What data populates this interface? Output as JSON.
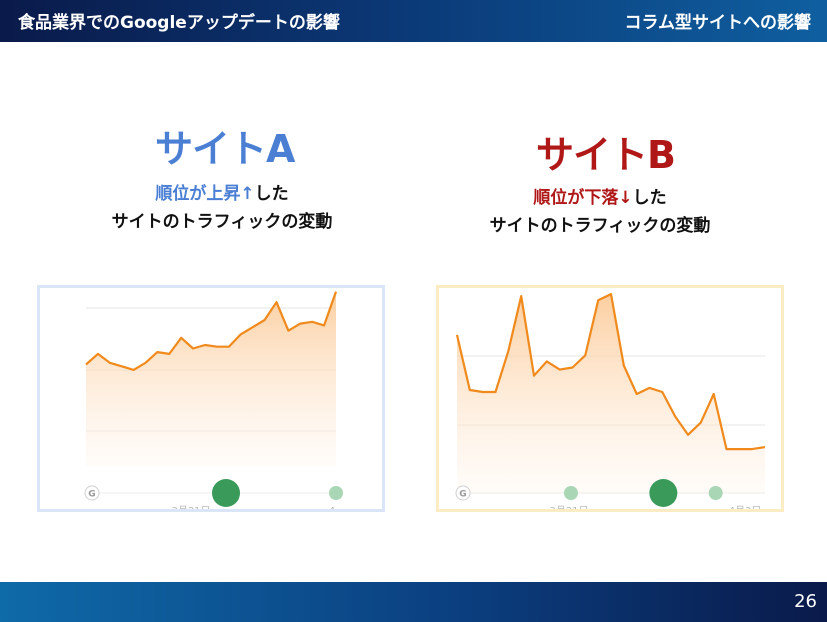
{
  "header": {
    "left_title": "食品業界でのGoogleアップデートの影響",
    "right_title": "コラム型サイトへの影響"
  },
  "footer": {
    "page_number": "26"
  },
  "site_a": {
    "title": "サイトA",
    "caption_highlight": "順位が上昇↑",
    "caption_suffix": "した",
    "caption_line2": "サイトのトラフィックの変動",
    "accent_color": "#4a7fd4"
  },
  "site_b": {
    "title": "サイトB",
    "caption_highlight": "順位が下落↓",
    "caption_suffix": "した",
    "caption_line2": "サイトのトラフィックの変動",
    "accent_color": "#b01818"
  },
  "chart_data": [
    {
      "type": "area",
      "name": "site-a-traffic",
      "x_tick_labels": [
        "3月21日",
        "4"
      ],
      "y": [
        57,
        63,
        58,
        56,
        54,
        58,
        64,
        63,
        72,
        66,
        68,
        67,
        67,
        74,
        78,
        82,
        92,
        76,
        80,
        81,
        79,
        98
      ],
      "ylim": [
        0,
        100
      ],
      "line_color": "#f08a1c",
      "grid": true,
      "markers": [
        {
          "label_icon": "google-g-icon",
          "position": 0
        },
        {
          "size": "large",
          "color": "#3a9a5a",
          "position": 0.56
        },
        {
          "size": "small",
          "color": "#a9d6b5",
          "position": 1.0
        }
      ]
    },
    {
      "type": "area",
      "name": "site-b-traffic",
      "x_tick_labels": [
        "3月21日",
        "4月3日"
      ],
      "y": [
        78,
        51,
        50,
        50,
        70,
        97,
        58,
        65,
        61,
        62,
        68,
        95,
        98,
        63,
        49,
        52,
        50,
        38,
        29,
        35,
        49,
        22,
        22,
        22,
        23
      ],
      "ylim": [
        0,
        100
      ],
      "line_color": "#f08a1c",
      "grid": true,
      "markers": [
        {
          "label_icon": "google-g-icon",
          "position": 0
        },
        {
          "size": "small",
          "color": "#a9d6b5",
          "position": 0.37
        },
        {
          "size": "large",
          "color": "#3a9a5a",
          "position": 0.67
        },
        {
          "size": "small",
          "color": "#a9d6b5",
          "position": 0.84
        }
      ]
    }
  ]
}
